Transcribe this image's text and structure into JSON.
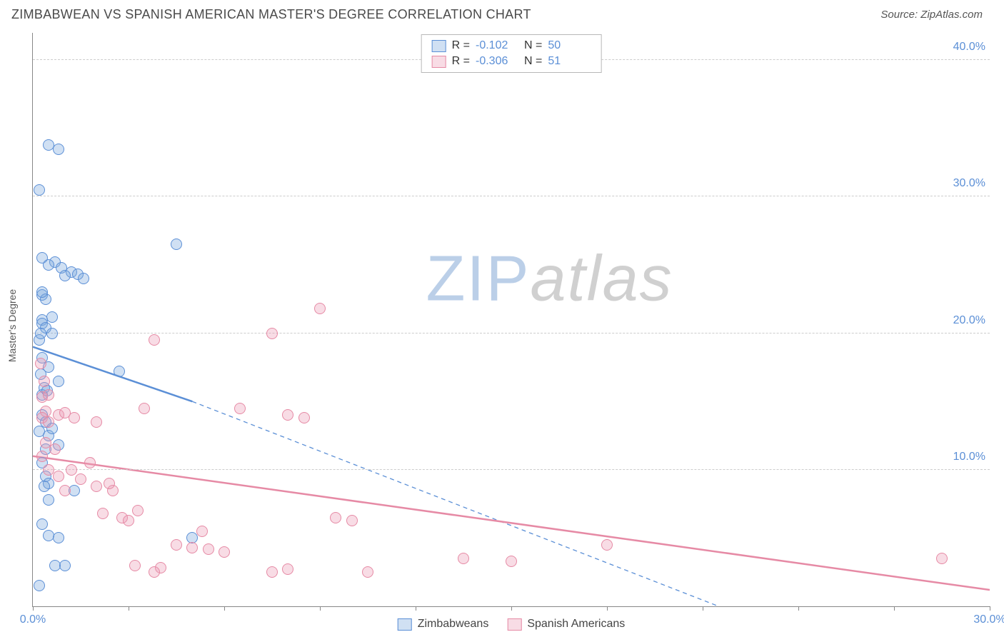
{
  "header": {
    "title": "ZIMBABWEAN VS SPANISH AMERICAN MASTER'S DEGREE CORRELATION CHART",
    "source_prefix": "Source: ",
    "source_name": "ZipAtlas.com"
  },
  "watermark": {
    "part1": "ZIP",
    "part2": "atlas"
  },
  "chart": {
    "type": "scatter",
    "ylabel": "Master's Degree",
    "background_color": "#ffffff",
    "grid_color": "#cccccc",
    "axis_color": "#888888",
    "tick_label_color": "#5b8fd6",
    "xlim": [
      0,
      30
    ],
    "ylim": [
      0,
      42
    ],
    "xticks": [
      {
        "pos": 0,
        "label": "0.0%"
      },
      {
        "pos": 3,
        "label": ""
      },
      {
        "pos": 6,
        "label": ""
      },
      {
        "pos": 9,
        "label": ""
      },
      {
        "pos": 12,
        "label": ""
      },
      {
        "pos": 15,
        "label": ""
      },
      {
        "pos": 18,
        "label": ""
      },
      {
        "pos": 21,
        "label": ""
      },
      {
        "pos": 24,
        "label": ""
      },
      {
        "pos": 27,
        "label": ""
      },
      {
        "pos": 30,
        "label": "30.0%"
      }
    ],
    "yticks": [
      {
        "pos": 10,
        "label": "10.0%"
      },
      {
        "pos": 20,
        "label": "20.0%"
      },
      {
        "pos": 30,
        "label": "30.0%"
      },
      {
        "pos": 40,
        "label": "40.0%"
      }
    ],
    "point_radius": 8,
    "point_border_width": 1.5,
    "point_fill_opacity": 0.35,
    "series": [
      {
        "id": "zimbabweans",
        "label": "Zimbabweans",
        "color": "#5b8fd6",
        "fill": "rgba(120,165,220,0.35)",
        "r_value": "-0.102",
        "n_value": "50",
        "trend": {
          "solid": {
            "x1": 0,
            "y1": 19.0,
            "x2": 5.0,
            "y2": 15.0
          },
          "dashed": {
            "x1": 5.0,
            "y1": 15.0,
            "x2": 21.5,
            "y2": 0
          },
          "line_width": 2.5,
          "dash_pattern": "6,5"
        },
        "points": [
          [
            0.2,
            1.5
          ],
          [
            0.5,
            33.8
          ],
          [
            0.8,
            33.5
          ],
          [
            0.2,
            30.5
          ],
          [
            0.3,
            25.5
          ],
          [
            0.7,
            25.2
          ],
          [
            1.2,
            24.5
          ],
          [
            1.4,
            24.3
          ],
          [
            4.5,
            26.5
          ],
          [
            0.3,
            22.8
          ],
          [
            0.3,
            21.0
          ],
          [
            0.3,
            20.7
          ],
          [
            0.4,
            20.4
          ],
          [
            0.2,
            19.5
          ],
          [
            0.3,
            18.2
          ],
          [
            0.5,
            17.5
          ],
          [
            0.8,
            16.5
          ],
          [
            0.3,
            15.5
          ],
          [
            0.3,
            14.0
          ],
          [
            0.4,
            13.5
          ],
          [
            0.5,
            12.5
          ],
          [
            2.7,
            17.2
          ],
          [
            0.3,
            10.5
          ],
          [
            0.4,
            9.5
          ],
          [
            0.5,
            9.0
          ],
          [
            1.3,
            8.5
          ],
          [
            0.3,
            6.0
          ],
          [
            0.5,
            5.2
          ],
          [
            0.8,
            5.0
          ],
          [
            5.0,
            5.0
          ],
          [
            0.7,
            3.0
          ],
          [
            1.0,
            3.0
          ],
          [
            0.4,
            11.5
          ],
          [
            0.6,
            21.2
          ],
          [
            0.9,
            24.8
          ],
          [
            1.6,
            24.0
          ],
          [
            0.25,
            17.0
          ],
          [
            0.35,
            16.0
          ],
          [
            0.45,
            15.8
          ],
          [
            0.6,
            13.0
          ],
          [
            0.8,
            11.8
          ],
          [
            0.35,
            8.8
          ],
          [
            0.5,
            7.8
          ],
          [
            0.2,
            12.8
          ],
          [
            0.6,
            20.0
          ],
          [
            0.4,
            22.5
          ],
          [
            0.5,
            25.0
          ],
          [
            0.25,
            20.0
          ],
          [
            1.0,
            24.2
          ],
          [
            0.3,
            23.0
          ]
        ]
      },
      {
        "id": "spanish_americans",
        "label": "Spanish Americans",
        "color": "#e68aa5",
        "fill": "rgba(235,155,180,0.35)",
        "r_value": "-0.306",
        "n_value": "51",
        "trend": {
          "solid": {
            "x1": 0,
            "y1": 11.0,
            "x2": 30.0,
            "y2": 1.2
          },
          "dashed": null,
          "line_width": 2.5
        },
        "points": [
          [
            0.25,
            17.8
          ],
          [
            0.3,
            15.3
          ],
          [
            0.4,
            14.3
          ],
          [
            0.5,
            15.5
          ],
          [
            0.3,
            13.8
          ],
          [
            0.5,
            13.5
          ],
          [
            0.8,
            14.0
          ],
          [
            1.0,
            14.2
          ],
          [
            1.3,
            13.8
          ],
          [
            3.5,
            14.5
          ],
          [
            3.8,
            19.5
          ],
          [
            6.5,
            14.5
          ],
          [
            7.5,
            20.0
          ],
          [
            9.0,
            21.8
          ],
          [
            8.0,
            14.0
          ],
          [
            8.5,
            13.8
          ],
          [
            0.5,
            10.0
          ],
          [
            0.8,
            9.5
          ],
          [
            1.2,
            10.0
          ],
          [
            1.5,
            9.3
          ],
          [
            2.0,
            8.8
          ],
          [
            2.2,
            6.8
          ],
          [
            2.5,
            8.5
          ],
          [
            2.8,
            6.5
          ],
          [
            3.0,
            6.3
          ],
          [
            3.3,
            7.0
          ],
          [
            4.5,
            4.5
          ],
          [
            5.0,
            4.3
          ],
          [
            5.3,
            5.5
          ],
          [
            5.5,
            4.2
          ],
          [
            6.0,
            4.0
          ],
          [
            7.5,
            2.5
          ],
          [
            8.0,
            2.7
          ],
          [
            9.5,
            6.5
          ],
          [
            10.0,
            6.3
          ],
          [
            10.5,
            2.5
          ],
          [
            13.5,
            3.5
          ],
          [
            15.0,
            3.3
          ],
          [
            18.0,
            4.5
          ],
          [
            28.5,
            3.5
          ],
          [
            0.4,
            12.0
          ],
          [
            0.7,
            11.5
          ],
          [
            1.0,
            8.5
          ],
          [
            2.0,
            13.5
          ],
          [
            3.2,
            3.0
          ],
          [
            4.0,
            2.8
          ],
          [
            1.8,
            10.5
          ],
          [
            2.4,
            9.0
          ],
          [
            0.35,
            16.5
          ],
          [
            0.3,
            11.0
          ],
          [
            3.8,
            2.5
          ]
        ]
      }
    ],
    "legend_top": {
      "r_label": "R =",
      "n_label": "N ="
    },
    "legend_bottom_order": [
      "zimbabweans",
      "spanish_americans"
    ]
  }
}
